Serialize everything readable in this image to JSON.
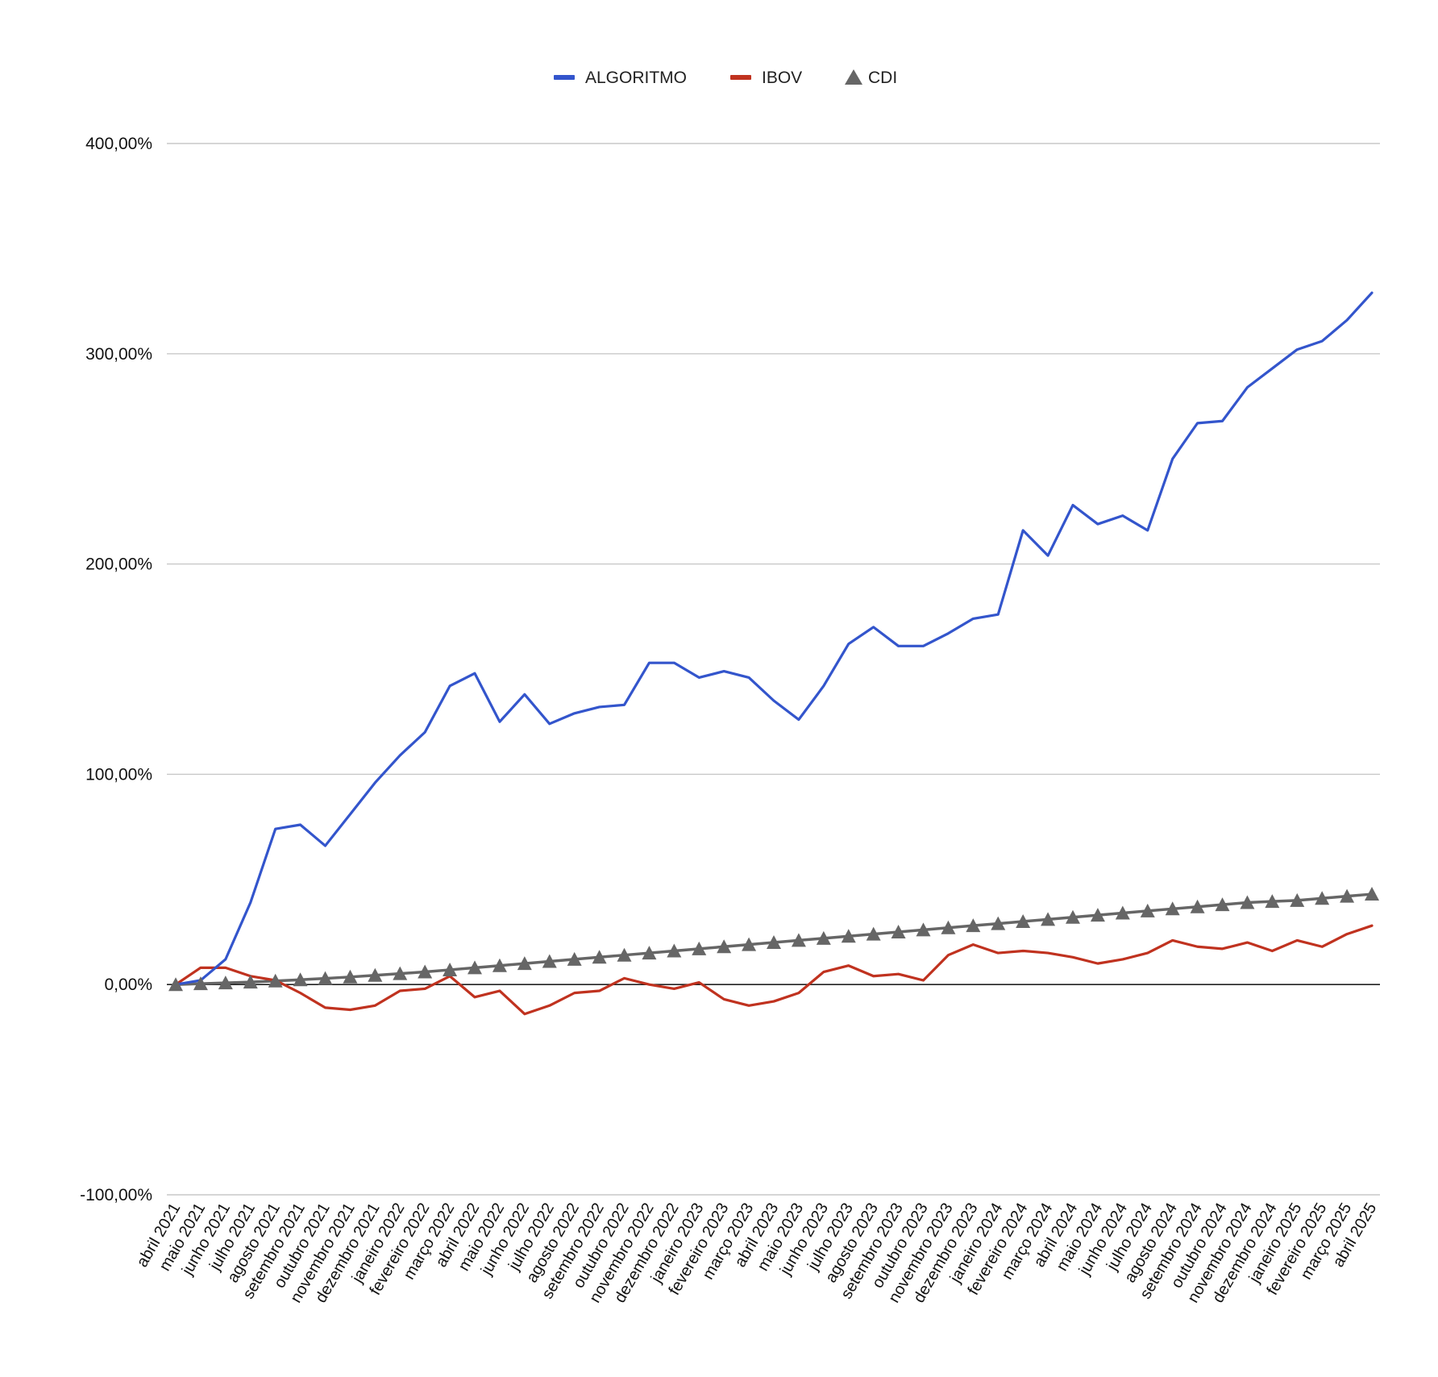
{
  "chart_data": {
    "type": "line",
    "title": "",
    "xlabel": "",
    "ylabel": "",
    "ylim": [
      -100,
      400
    ],
    "y_ticks": [
      400,
      300,
      200,
      100,
      0,
      -100
    ],
    "y_tick_labels": [
      "400,00%",
      "300,00%",
      "200,00%",
      "100,00%",
      "0,00%",
      "-100,00%"
    ],
    "grid": true,
    "legend_position": "top",
    "categories": [
      "abril 2021",
      "maio 2021",
      "junho 2021",
      "julho 2021",
      "agosto 2021",
      "setembro 2021",
      "outubro 2021",
      "novembro 2021",
      "dezembro 2021",
      "janeiro 2022",
      "fevereiro 2022",
      "março 2022",
      "abril 2022",
      "maio 2022",
      "junho 2022",
      "julho 2022",
      "agosto 2022",
      "setembro 2022",
      "outubro 2022",
      "novembro 2022",
      "dezembro 2022",
      "janeiro 2023",
      "fevereiro 2023",
      "março 2023",
      "abril 2023",
      "maio 2023",
      "junho 2023",
      "julho 2023",
      "agosto 2023",
      "setembro 2023",
      "outubro 2023",
      "novembro 2023",
      "dezembro 2023",
      "janeiro 2024",
      "fevereiro 2024",
      "março 2024",
      "abril 2024",
      "maio 2024",
      "junho 2024",
      "julho 2024",
      "agosto 2024",
      "setembro 2024",
      "outubro 2024",
      "novembro 2024",
      "dezembro 2024",
      "janeiro 2025",
      "fevereiro 2025",
      "março 2025",
      "abril 2025"
    ],
    "series": [
      {
        "name": "ALGORITMO",
        "color": "#3355cc",
        "marker": "none",
        "values": [
          0,
          2,
          12,
          39,
          74,
          76,
          66,
          81,
          96,
          109,
          120,
          142,
          148,
          125,
          138,
          124,
          129,
          132,
          133,
          153,
          153,
          146,
          149,
          146,
          135,
          126,
          142,
          162,
          170,
          161,
          161,
          167,
          174,
          176,
          216,
          204,
          228,
          219,
          223,
          216,
          250,
          267,
          268,
          284,
          293,
          302,
          306,
          316,
          329
        ]
      },
      {
        "name": "IBOV",
        "color": "#c0321f",
        "marker": "none",
        "values": [
          0,
          8,
          8,
          4,
          2,
          -4,
          -11,
          -12,
          -10,
          -3,
          -2,
          4,
          -6,
          -3,
          -14,
          -10,
          -4,
          -3,
          3,
          0,
          -2,
          1,
          -7,
          -10,
          -8,
          -4,
          6,
          9,
          4,
          5,
          2,
          14,
          19,
          15,
          16,
          15,
          13,
          10,
          12,
          15,
          21,
          18,
          17,
          20,
          16,
          21,
          18,
          24,
          28
        ]
      },
      {
        "name": "CDI",
        "color": "#666666",
        "marker": "triangle",
        "values": [
          0,
          0.4,
          0.8,
          1.2,
          1.7,
          2.3,
          2.9,
          3.6,
          4.4,
          5.2,
          6,
          7,
          8,
          9,
          10,
          11,
          12,
          13,
          14,
          15,
          16,
          17,
          18,
          19,
          20,
          21,
          22,
          23,
          24,
          25,
          26,
          27,
          28,
          29,
          30,
          31,
          32,
          33,
          34,
          35,
          36,
          37,
          38,
          39,
          39.5,
          40,
          41,
          42,
          43
        ]
      }
    ]
  }
}
